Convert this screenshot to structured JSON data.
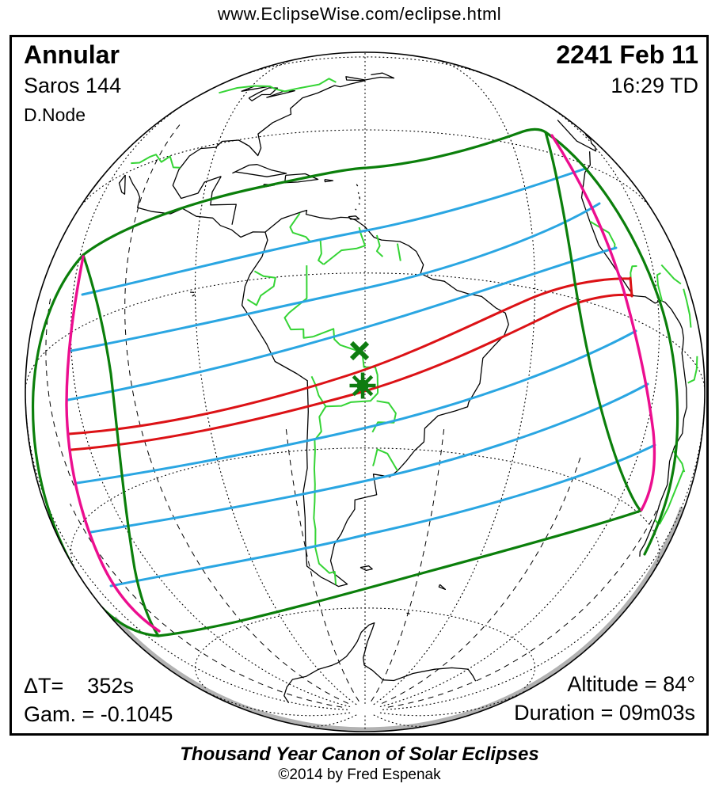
{
  "header": {
    "url": "www.EclipseWise.com/eclipse.html"
  },
  "eclipse": {
    "type": "Annular",
    "saros": "Saros 144",
    "node": "D.Node",
    "date": "2241 Feb 11",
    "time": "16:29 TD",
    "delta_t": "ΔT=    352s",
    "gamma": "Gam. = -0.1045",
    "altitude": "Altitude = 84°",
    "duration": "Duration = 09m03s"
  },
  "footer": {
    "title": "Thousand Year Canon of Solar Eclipses",
    "copyright": "©2014 by Fred Espenak"
  },
  "colors": {
    "coast_black": "#000000",
    "border_green": "#35d435",
    "limit_dark_green": "#0b7f0b",
    "contour_blue": "#2aa6e2",
    "central_path_red": "#dc1216",
    "sunrise_sunset_magenta": "#ec0e8f",
    "limb_gray": "#b2b2b2",
    "marker_green": "#0e7c10",
    "graticule": "#000000"
  },
  "map": {
    "markers": [
      {
        "name": "greatest-eclipse",
        "symbol": "star",
        "color_key": "marker_green"
      },
      {
        "name": "greatest-duration",
        "symbol": "x",
        "color_key": "marker_green"
      }
    ],
    "lines": [
      {
        "name": "penumbral-limits",
        "color_key": "limit_dark_green"
      },
      {
        "name": "eclipse-magnitude-contours",
        "color_key": "contour_blue"
      },
      {
        "name": "central-path-of-annularity",
        "color_key": "central_path_red"
      },
      {
        "name": "sunrise-sunset-curves",
        "color_key": "sunrise_sunset_magenta"
      },
      {
        "name": "coastlines",
        "color_key": "coast_black"
      },
      {
        "name": "country-borders",
        "color_key": "border_green"
      }
    ]
  }
}
